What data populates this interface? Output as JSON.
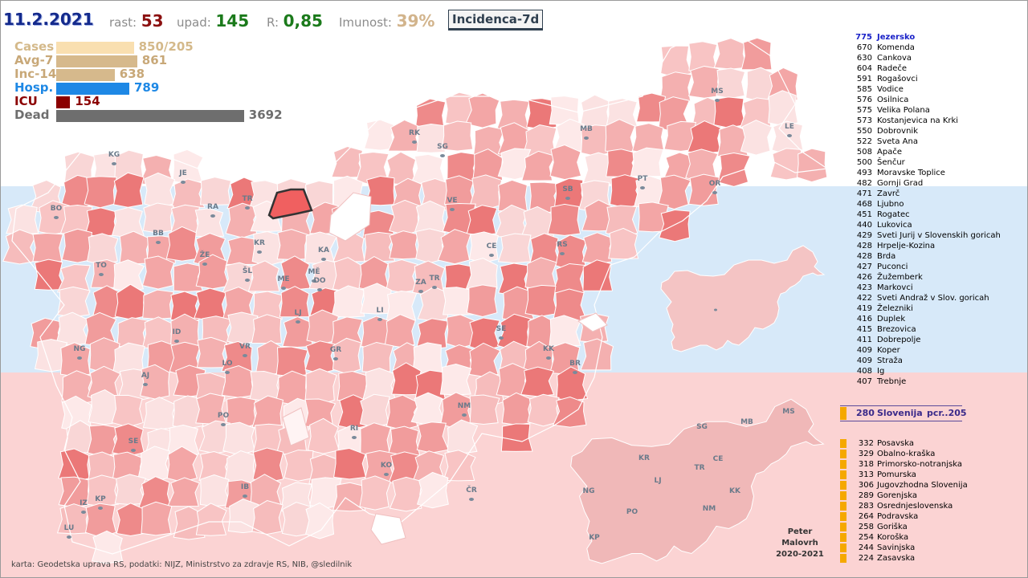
{
  "header": {
    "date": "11.2.2021",
    "rast_label": "rast:",
    "rast_value": "53",
    "upad_label": "upad:",
    "upad_value": "145",
    "r_label": "R:",
    "r_value": "0,85",
    "imunost_label": "Imunost:",
    "imunost_value": "39%",
    "tab_label": "Incidenca-7d"
  },
  "stats": [
    {
      "name": "Cases",
      "value": "850/205",
      "fraction": 0.345,
      "color": "#f9dfb0",
      "name_color": "#d4b98a"
    },
    {
      "name": "Avg-7",
      "value": "861",
      "fraction": 0.36,
      "color": "#d6b98c",
      "name_color": "#c8a878"
    },
    {
      "name": "Inc-14",
      "value": "638",
      "fraction": 0.26,
      "color": "#d6b98c",
      "name_color": "#c8a878"
    },
    {
      "name": "Hosp.",
      "value": "789",
      "fraction": 0.325,
      "color": "#1e88e5",
      "name_color": "#1e88e5"
    },
    {
      "name": "ICU",
      "value": "154",
      "fraction": 0.062,
      "color": "#8b0000",
      "name_color": "#8b0000"
    },
    {
      "name": "Dead",
      "value": "3692",
      "fraction": 0.835,
      "color": "#6e6e6e",
      "name_color": "#6e6e6e"
    }
  ],
  "chart_data": {
    "type": "table",
    "title": "Incidenca-7d",
    "municipalities": [
      {
        "value": 775,
        "name": "Jezersko",
        "highlight": true
      },
      {
        "value": 670,
        "name": "Komenda"
      },
      {
        "value": 630,
        "name": "Cankova"
      },
      {
        "value": 604,
        "name": "Radeče"
      },
      {
        "value": 591,
        "name": "Rogašovci"
      },
      {
        "value": 585,
        "name": "Vodice"
      },
      {
        "value": 576,
        "name": "Osilnica"
      },
      {
        "value": 575,
        "name": "Velika Polana"
      },
      {
        "value": 573,
        "name": "Kostanjevica na Krki"
      },
      {
        "value": 550,
        "name": "Dobrovnik"
      },
      {
        "value": 522,
        "name": "Sveta Ana"
      },
      {
        "value": 508,
        "name": "Apače"
      },
      {
        "value": 500,
        "name": "Šenčur"
      },
      {
        "value": 493,
        "name": "Moravske Toplice"
      },
      {
        "value": 482,
        "name": "Gornji Grad"
      },
      {
        "value": 471,
        "name": "Zavrč"
      },
      {
        "value": 468,
        "name": "Ljubno"
      },
      {
        "value": 451,
        "name": "Rogatec"
      },
      {
        "value": 440,
        "name": "Lukovica"
      },
      {
        "value": 429,
        "name": "Sveti Jurij v Slovenskih goricah"
      },
      {
        "value": 428,
        "name": "Hrpelje-Kozina"
      },
      {
        "value": 428,
        "name": "Brda"
      },
      {
        "value": 427,
        "name": "Puconci"
      },
      {
        "value": 426,
        "name": "Žužemberk"
      },
      {
        "value": 423,
        "name": "Markovci"
      },
      {
        "value": 422,
        "name": "Sveti Andraž v Slov. goricah"
      },
      {
        "value": 419,
        "name": "Železniki"
      },
      {
        "value": 416,
        "name": "Duplek"
      },
      {
        "value": 415,
        "name": "Brezovica"
      },
      {
        "value": 411,
        "name": "Dobrepolje"
      },
      {
        "value": 409,
        "name": "Koper"
      },
      {
        "value": 409,
        "name": "Straža"
      },
      {
        "value": 408,
        "name": "Ig"
      },
      {
        "value": 407,
        "name": "Trebnje"
      }
    ],
    "slovenia": {
      "value": 280,
      "name": "Slovenija",
      "suffix": "pcr..205"
    },
    "regions": [
      {
        "value": 332,
        "name": "Posavska"
      },
      {
        "value": 329,
        "name": "Obalno-kraška"
      },
      {
        "value": 318,
        "name": "Primorsko-notranjska"
      },
      {
        "value": 313,
        "name": "Pomurska"
      },
      {
        "value": 306,
        "name": "Jugovzhodna Slovenija"
      },
      {
        "value": 289,
        "name": "Gorenjska"
      },
      {
        "value": 283,
        "name": "Osrednjeslovenska"
      },
      {
        "value": 264,
        "name": "Podravska"
      },
      {
        "value": 258,
        "name": "Goriška"
      },
      {
        "value": 254,
        "name": "Koroška"
      },
      {
        "value": 244,
        "name": "Savinjska"
      },
      {
        "value": 224,
        "name": "Zasavska"
      }
    ]
  },
  "map_labels": [
    "KG",
    "JE",
    "BO",
    "RA",
    "TR",
    "RK",
    "SG",
    "MB",
    "MS",
    "LE",
    "BB",
    "ŽE",
    "KR",
    "KA",
    "VE",
    "SB",
    "PT",
    "OR",
    "TO",
    "ŠL",
    "ME",
    "MĚ",
    "DO",
    "ZA",
    "TR",
    "CE",
    "RS",
    "LJ",
    "LI",
    "SE",
    "ID",
    "NG",
    "VR",
    "GR",
    "KK",
    "BR",
    "LO",
    "AJ",
    "PO",
    "NM",
    "RI",
    "SE",
    "KO",
    "ČR",
    "IB",
    "KP",
    "IZ",
    "LU"
  ],
  "small_map_labels": [
    "SG",
    "MB",
    "MS",
    "KR",
    "LJ",
    "TR",
    "CE",
    "NG",
    "KK",
    "NM",
    "PO",
    "KP"
  ],
  "author": {
    "line1": "Peter",
    "line2": "Malovrh",
    "line3": "2020-2021"
  },
  "credit": "karta: Geodetska uprava RS,  podatki: NIJZ, Ministrstvo za zdravje RS, NIB, @sledilnik"
}
